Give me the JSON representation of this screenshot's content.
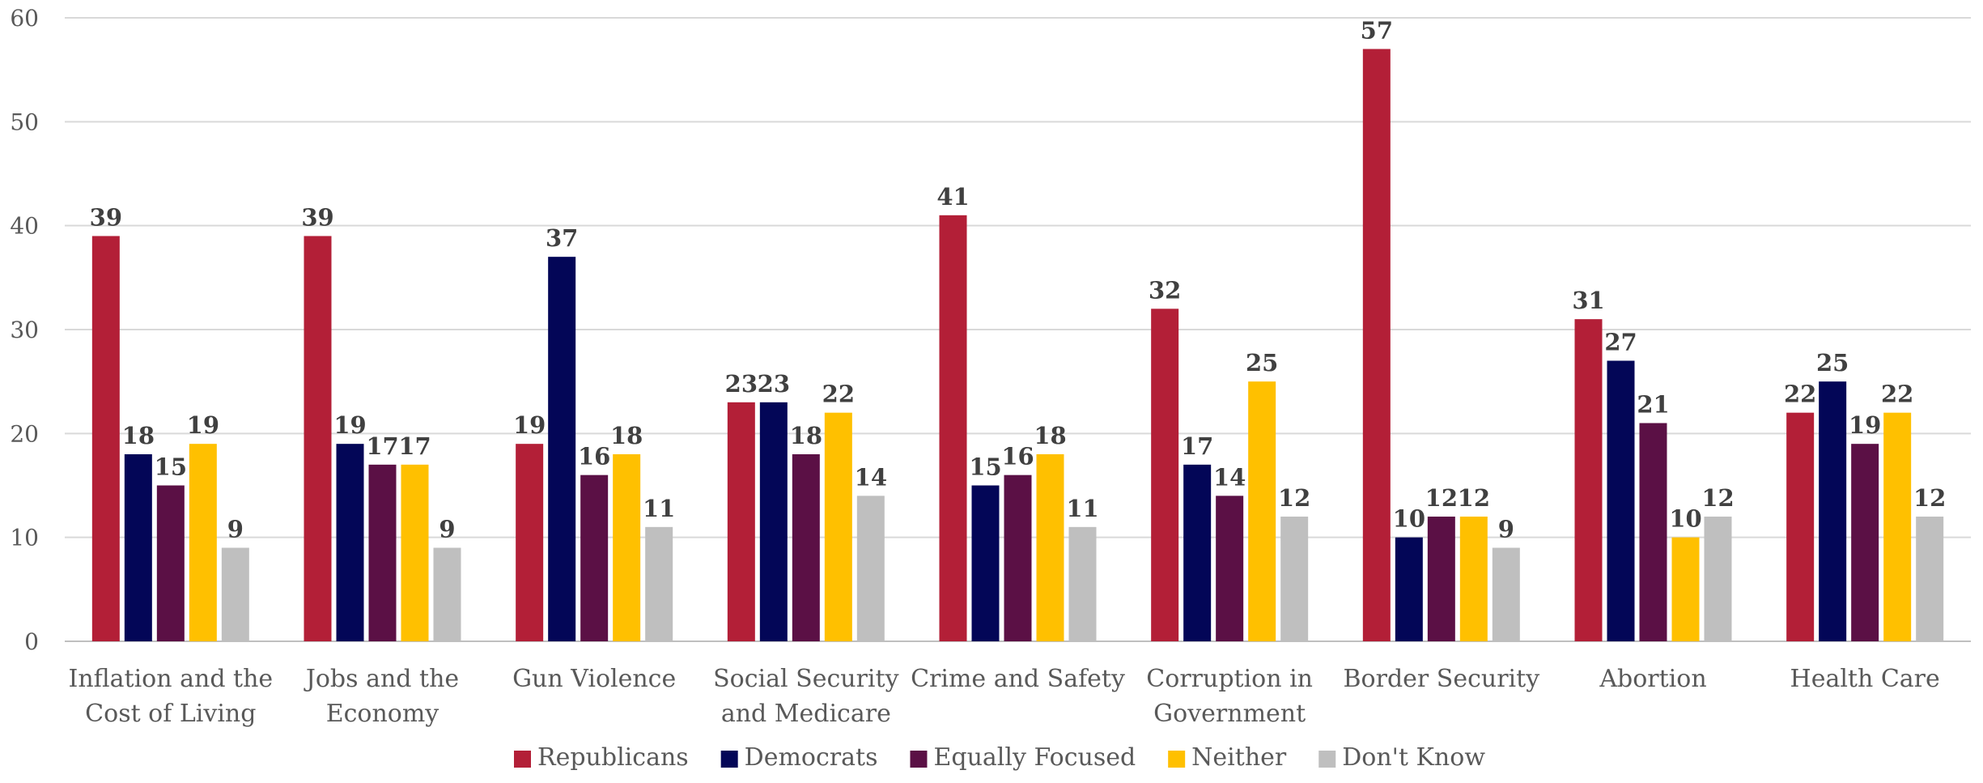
{
  "chart_data": {
    "type": "bar",
    "title": "",
    "xlabel": "",
    "ylabel": "",
    "ylim": [
      0,
      60
    ],
    "yticks": [
      0,
      10,
      20,
      30,
      40,
      50,
      60
    ],
    "grid": true,
    "legend_position": "bottom",
    "categories": [
      [
        "Inflation and the",
        "Cost of Living"
      ],
      [
        "Jobs and the",
        "Economy"
      ],
      [
        "Gun Violence"
      ],
      [
        "Social Security",
        "and Medicare"
      ],
      [
        "Crime and Safety"
      ],
      [
        "Corruption in",
        "Government"
      ],
      [
        "Border Security"
      ],
      [
        "Abortion"
      ],
      [
        "Health Care"
      ]
    ],
    "series": [
      {
        "name": "Republicans",
        "color": "#B31F37",
        "values": [
          39,
          39,
          19,
          23,
          41,
          32,
          57,
          31,
          22
        ]
      },
      {
        "name": "Democrats",
        "color": "#030657",
        "values": [
          18,
          19,
          37,
          23,
          15,
          17,
          10,
          27,
          25
        ]
      },
      {
        "name": "Equally Focused",
        "color": "#5B1045",
        "values": [
          15,
          17,
          16,
          18,
          16,
          14,
          12,
          21,
          19
        ]
      },
      {
        "name": "Neither",
        "color": "#FFC000",
        "values": [
          19,
          17,
          18,
          22,
          18,
          25,
          12,
          10,
          22
        ]
      },
      {
        "name": "Don't Know",
        "color": "#BFBFBF",
        "values": [
          9,
          9,
          11,
          14,
          11,
          12,
          9,
          12,
          12
        ]
      }
    ],
    "colors": {
      "grid": "#D9D9D9",
      "axis": "#BFBFBF"
    }
  }
}
